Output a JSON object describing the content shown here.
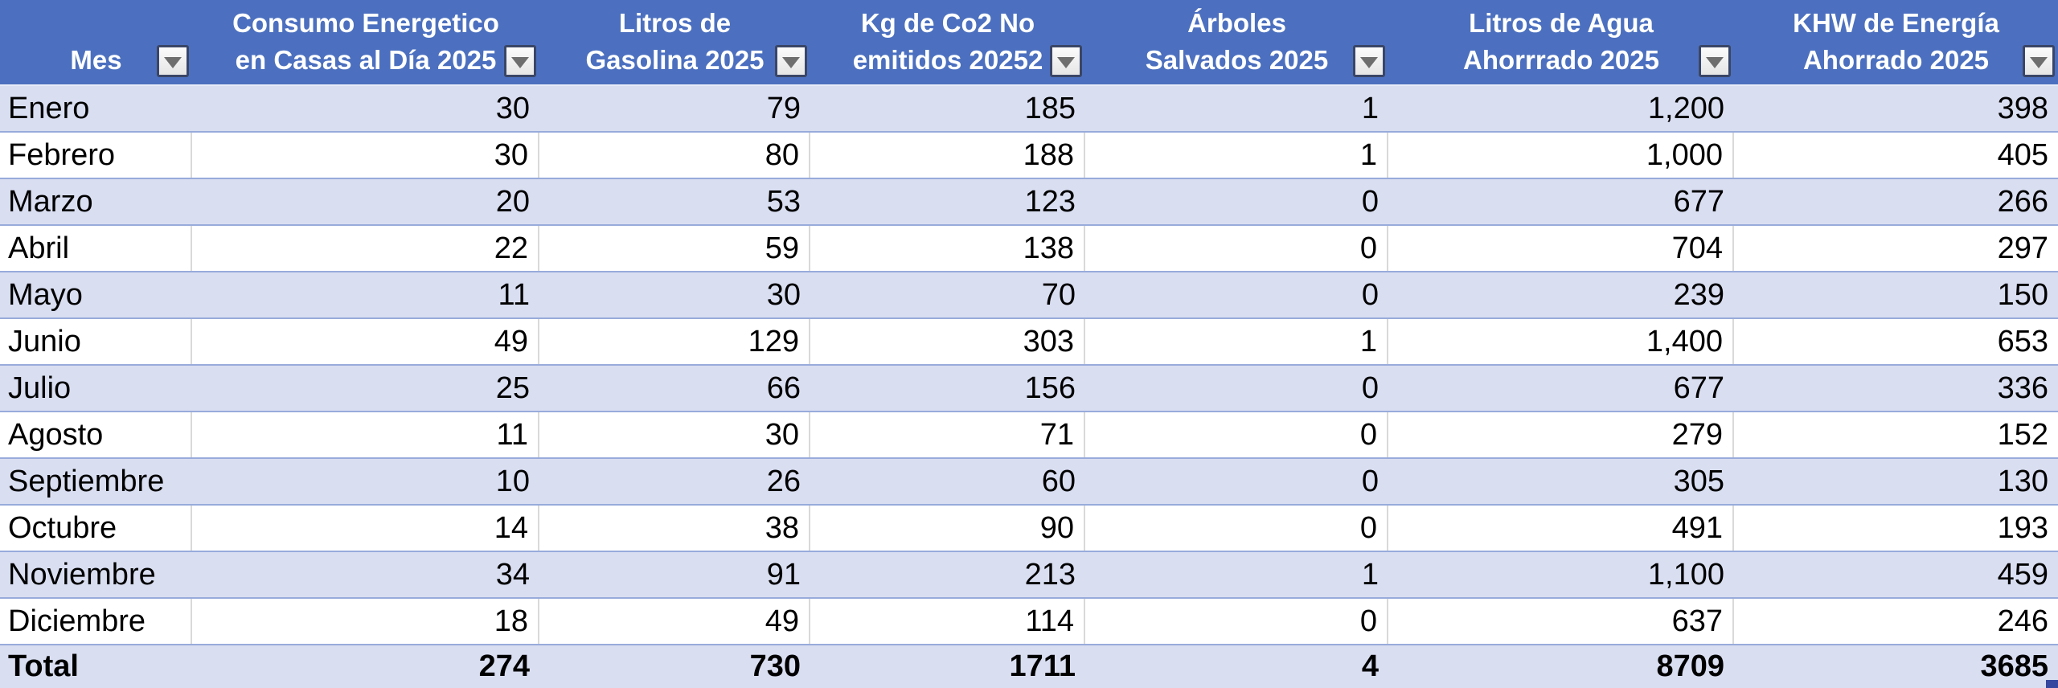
{
  "table": {
    "columns": [
      {
        "id": "mes",
        "lines": [
          "Mes"
        ]
      },
      {
        "id": "consumo",
        "lines": [
          "Consumo Energetico",
          "en Casas al Día 2025"
        ]
      },
      {
        "id": "gasolina",
        "lines": [
          "Litros de",
          "Gasolina 2025"
        ]
      },
      {
        "id": "co2",
        "lines": [
          "Kg de Co2 No",
          "emitidos 20252"
        ]
      },
      {
        "id": "arboles",
        "lines": [
          "Árboles",
          "Salvados 2025"
        ]
      },
      {
        "id": "agua",
        "lines": [
          "Litros de Agua",
          "Ahorrrado 2025"
        ]
      },
      {
        "id": "khw",
        "lines": [
          "KHW de Energía",
          "Ahorrado 2025"
        ]
      }
    ],
    "rows": [
      {
        "mes": "Enero",
        "values": [
          "30",
          "79",
          "185",
          "1",
          "1,200",
          "398"
        ]
      },
      {
        "mes": "Febrero",
        "values": [
          "30",
          "80",
          "188",
          "1",
          "1,000",
          "405"
        ]
      },
      {
        "mes": "Marzo",
        "values": [
          "20",
          "53",
          "123",
          "0",
          "677",
          "266"
        ]
      },
      {
        "mes": "Abril",
        "values": [
          "22",
          "59",
          "138",
          "0",
          "704",
          "297"
        ]
      },
      {
        "mes": "Mayo",
        "values": [
          "11",
          "30",
          "70",
          "0",
          "239",
          "150"
        ]
      },
      {
        "mes": "Junio",
        "values": [
          "49",
          "129",
          "303",
          "1",
          "1,400",
          "653"
        ]
      },
      {
        "mes": "Julio",
        "values": [
          "25",
          "66",
          "156",
          "0",
          "677",
          "336"
        ]
      },
      {
        "mes": "Agosto",
        "values": [
          "11",
          "30",
          "71",
          "0",
          "279",
          "152"
        ]
      },
      {
        "mes": "Septiembre",
        "values": [
          "10",
          "26",
          "60",
          "0",
          "305",
          "130"
        ]
      },
      {
        "mes": "Octubre",
        "values": [
          "14",
          "38",
          "90",
          "0",
          "491",
          "193"
        ]
      },
      {
        "mes": "Noviembre",
        "values": [
          "34",
          "91",
          "213",
          "1",
          "1,100",
          "459"
        ]
      },
      {
        "mes": "Diciembre",
        "values": [
          "18",
          "49",
          "114",
          "0",
          "637",
          "246"
        ]
      }
    ],
    "total": {
      "label": "Total",
      "values": [
        "274",
        "730",
        "1711",
        "4",
        "8709",
        "3685"
      ]
    }
  },
  "icons": {
    "filter_dropdown": "chevron-down-icon"
  },
  "colors": {
    "header_background": "#4C70BF",
    "header_text": "#FFFFFF",
    "band_row_background": "#D9DEF1",
    "plain_row_background": "#FFFFFF",
    "row_separator": "#98ABDB",
    "plain_row_gridline": "#D9D9D9",
    "data_text": "#000000",
    "resize_handle": "#35479E"
  }
}
